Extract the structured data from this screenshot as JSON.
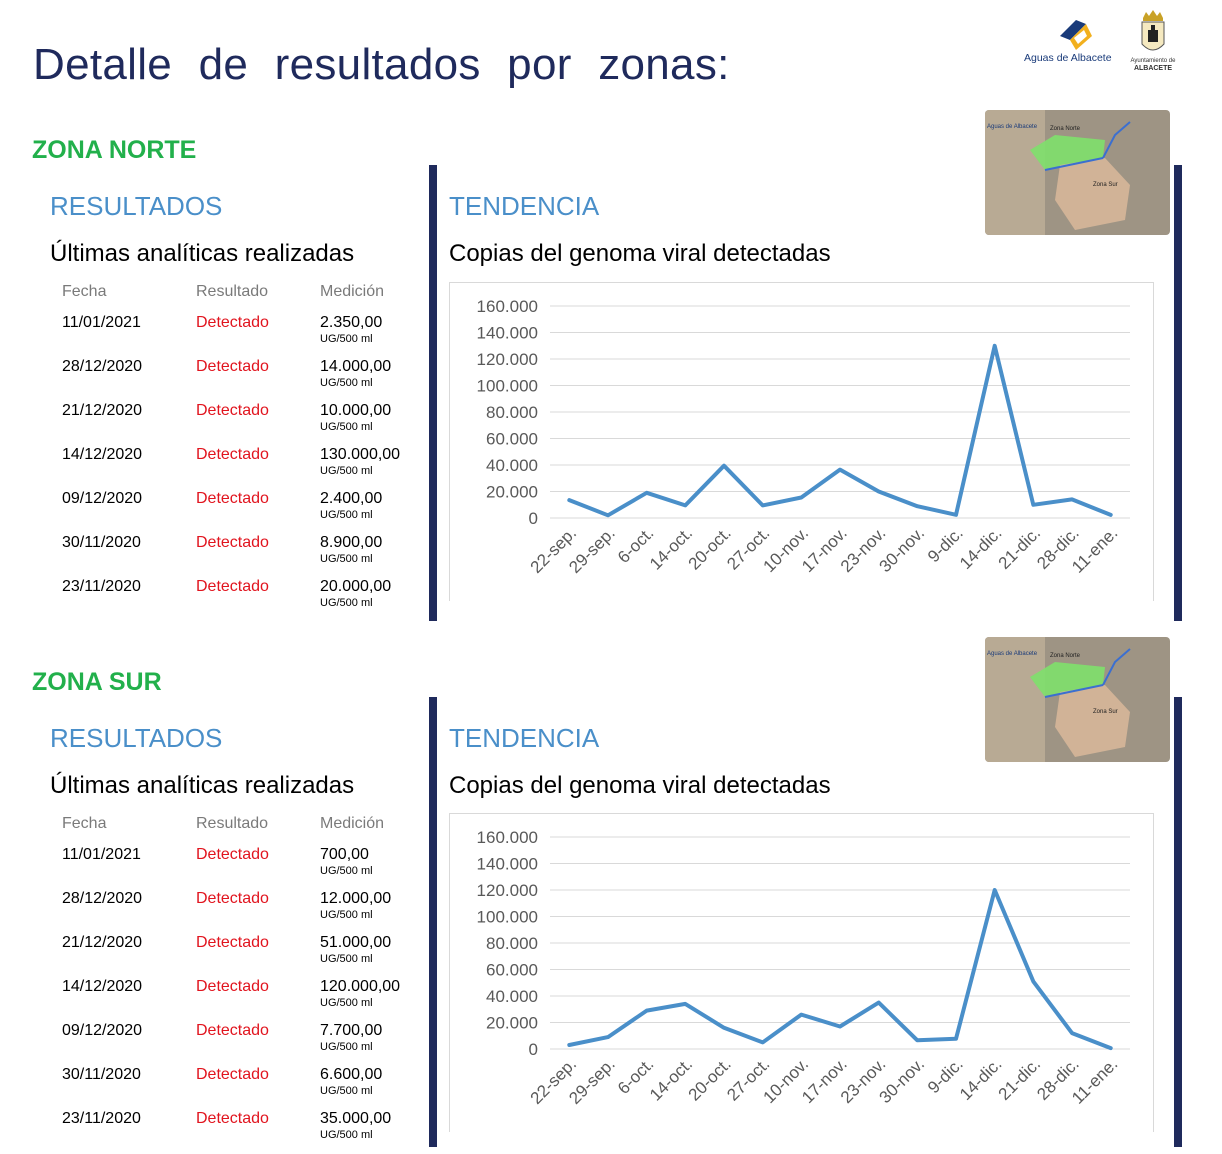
{
  "page": {
    "title": "Detalle de resultados por zonas:"
  },
  "logos": {
    "aguas_text": "Aguas de Albacete",
    "ayto_line1": "Ayuntamiento de",
    "ayto_line2": "ALBACETE"
  },
  "map_labels": {
    "brand": "Aguas de Albacete",
    "norte": "Zona Norte",
    "sur": "Zona Sur"
  },
  "zones": [
    {
      "name": "ZONA NORTE",
      "results_heading": "RESULTADOS",
      "results_subtitle": "Últimas analíticas realizadas",
      "columns": [
        "Fecha",
        "Resultado",
        "Medición"
      ],
      "rows": [
        {
          "date": "11/01/2021",
          "result": "Detectado",
          "value": "2.350,00",
          "unit": "UG/500 ml"
        },
        {
          "date": "28/12/2020",
          "result": "Detectado",
          "value": "14.000,00",
          "unit": "UG/500 ml"
        },
        {
          "date": "21/12/2020",
          "result": "Detectado",
          "value": "10.000,00",
          "unit": "UG/500 ml"
        },
        {
          "date": "14/12/2020",
          "result": "Detectado",
          "value": "130.000,00",
          "unit": "UG/500 ml"
        },
        {
          "date": "09/12/2020",
          "result": "Detectado",
          "value": "2.400,00",
          "unit": "UG/500 ml"
        },
        {
          "date": "30/11/2020",
          "result": "Detectado",
          "value": "8.900,00",
          "unit": "UG/500 ml"
        },
        {
          "date": "23/11/2020",
          "result": "Detectado",
          "value": "20.000,00",
          "unit": "UG/500 ml"
        }
      ],
      "trend_heading": "TENDENCIA",
      "trend_subtitle": "Copias del genoma viral detectadas"
    },
    {
      "name": "ZONA SUR",
      "results_heading": "RESULTADOS",
      "results_subtitle": "Últimas analíticas realizadas",
      "columns": [
        "Fecha",
        "Resultado",
        "Medición"
      ],
      "rows": [
        {
          "date": "11/01/2021",
          "result": "Detectado",
          "value": "700,00",
          "unit": "UG/500 ml"
        },
        {
          "date": "28/12/2020",
          "result": "Detectado",
          "value": "12.000,00",
          "unit": "UG/500 ml"
        },
        {
          "date": "21/12/2020",
          "result": "Detectado",
          "value": "51.000,00",
          "unit": "UG/500 ml"
        },
        {
          "date": "14/12/2020",
          "result": "Detectado",
          "value": "120.000,00",
          "unit": "UG/500 ml"
        },
        {
          "date": "09/12/2020",
          "result": "Detectado",
          "value": "7.700,00",
          "unit": "UG/500 ml"
        },
        {
          "date": "30/11/2020",
          "result": "Detectado",
          "value": "6.600,00",
          "unit": "UG/500 ml"
        },
        {
          "date": "23/11/2020",
          "result": "Detectado",
          "value": "35.000,00",
          "unit": "UG/500 ml"
        }
      ],
      "trend_heading": "TENDENCIA",
      "trend_subtitle": "Copias del genoma viral detectadas"
    }
  ],
  "colors": {
    "title": "#1f2a5c",
    "zone": "#22b04b",
    "heading": "#4a8fc9",
    "detected": "#e1141e",
    "line": "#4a8fc9",
    "grid": "#d9d9d9",
    "divider": "#1f2a5c"
  },
  "chart_data": [
    {
      "type": "line",
      "title": "",
      "categories": [
        "22-sep.",
        "29-sep.",
        "6-oct.",
        "14-oct.",
        "20-oct.",
        "27-oct.",
        "10-nov.",
        "17-nov.",
        "23-nov.",
        "30-nov.",
        "9-dic.",
        "14-dic.",
        "21-dic.",
        "28-dic.",
        "11-ene."
      ],
      "series": [
        {
          "values": [
            13500,
            2000,
            19000,
            9500,
            39500,
            9500,
            15500,
            36500,
            20000,
            8900,
            2400,
            130000,
            10000,
            14000,
            2350
          ]
        }
      ],
      "ylim": [
        0,
        160000
      ],
      "yticks": [
        0,
        20000,
        40000,
        60000,
        80000,
        100000,
        120000,
        140000,
        160000
      ],
      "ytick_labels": [
        "0",
        "20.000",
        "40.000",
        "60.000",
        "80.000",
        "100.000",
        "120.000",
        "140.000",
        "160.000"
      ],
      "grid": true,
      "legend": "none"
    },
    {
      "type": "line",
      "title": "",
      "categories": [
        "22-sep.",
        "29-sep.",
        "6-oct.",
        "14-oct.",
        "20-oct.",
        "27-oct.",
        "10-nov.",
        "17-nov.",
        "23-nov.",
        "30-nov.",
        "9-dic.",
        "14-dic.",
        "21-dic.",
        "28-dic.",
        "11-ene."
      ],
      "series": [
        {
          "values": [
            3000,
            9000,
            29000,
            34000,
            16000,
            5000,
            26000,
            17000,
            35000,
            6600,
            7700,
            120000,
            51000,
            12000,
            700
          ]
        }
      ],
      "ylim": [
        0,
        160000
      ],
      "yticks": [
        0,
        20000,
        40000,
        60000,
        80000,
        100000,
        120000,
        140000,
        160000
      ],
      "ytick_labels": [
        "0",
        "20.000",
        "40.000",
        "60.000",
        "80.000",
        "100.000",
        "120.000",
        "140.000",
        "160.000"
      ],
      "grid": true,
      "legend": "none"
    }
  ]
}
